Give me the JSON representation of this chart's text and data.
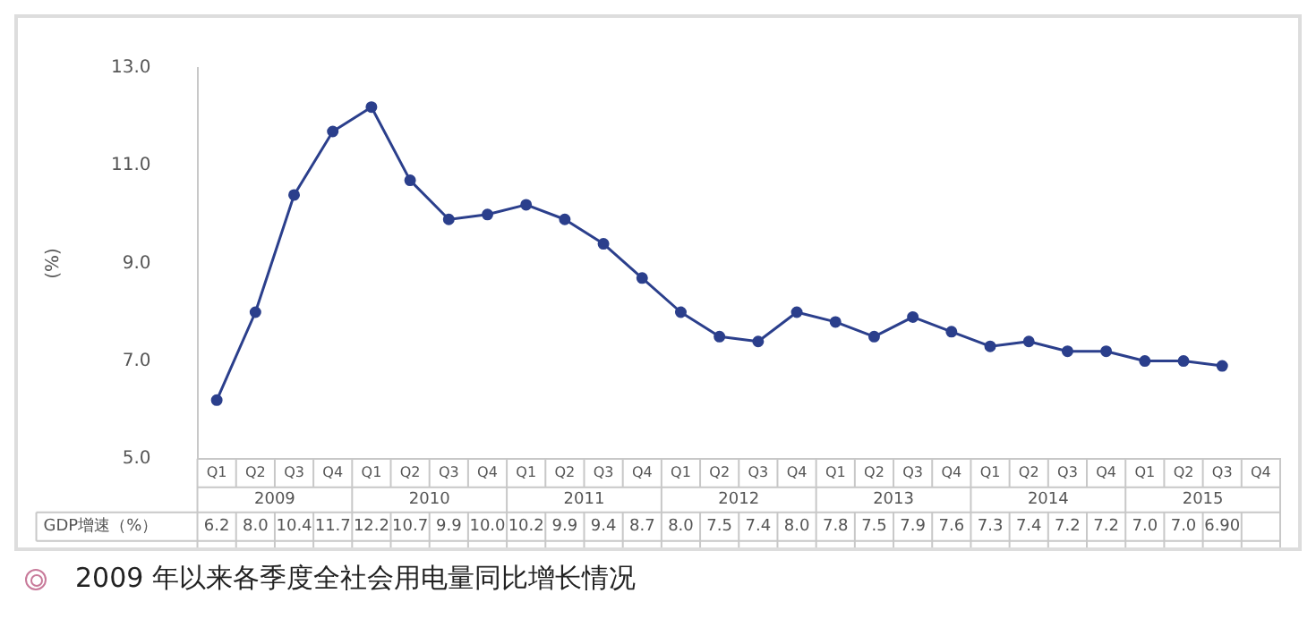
{
  "chart_data": {
    "type": "line",
    "title": "2009 年以来各季度全社会用电量同比增长情况",
    "ylabel": "(%)",
    "categories": [
      "Q1",
      "Q2",
      "Q3",
      "Q4",
      "Q1",
      "Q2",
      "Q3",
      "Q4",
      "Q1",
      "Q2",
      "Q3",
      "Q4",
      "Q1",
      "Q2",
      "Q3",
      "Q4",
      "Q1",
      "Q2",
      "Q3",
      "Q4",
      "Q1",
      "Q2",
      "Q3",
      "Q4",
      "Q1",
      "Q2",
      "Q3",
      "Q4"
    ],
    "annotations": [
      "2009",
      "2010",
      "2011",
      "2012",
      "2013",
      "2014",
      "2015"
    ],
    "series": [
      {
        "name": "GDP增速（%）",
        "color": "#2b3f8c",
        "values": [
          6.2,
          8.0,
          10.4,
          11.7,
          12.2,
          10.7,
          9.9,
          10.0,
          10.2,
          9.9,
          9.4,
          8.7,
          8.0,
          7.5,
          7.4,
          8.0,
          7.8,
          7.5,
          7.9,
          7.6,
          7.3,
          7.4,
          7.2,
          7.2,
          7.0,
          7.0,
          6.9,
          null
        ],
        "value_labels": [
          "6.2",
          "8.0",
          "10.4",
          "11.7",
          "12.2",
          "10.7",
          "9.9",
          "10.0",
          "10.2",
          "9.9",
          "9.4",
          "8.7",
          "8.0",
          "7.5",
          "7.4",
          "8.0",
          "7.8",
          "7.5",
          "7.9",
          "7.6",
          "7.3",
          "7.4",
          "7.2",
          "7.2",
          "7.0",
          "7.0",
          "6.90",
          null
        ]
      }
    ],
    "ylim": [
      5,
      13
    ],
    "yticks": [
      {
        "value": 5,
        "label": "5.0"
      },
      {
        "value": 7,
        "label": "7.0"
      },
      {
        "value": 9,
        "label": "9.0"
      },
      {
        "value": 11,
        "label": "11.0"
      },
      {
        "value": 13,
        "label": "13.0"
      }
    ],
    "grid": false,
    "legend": false,
    "marker": "circle",
    "line_style": "solid"
  }
}
